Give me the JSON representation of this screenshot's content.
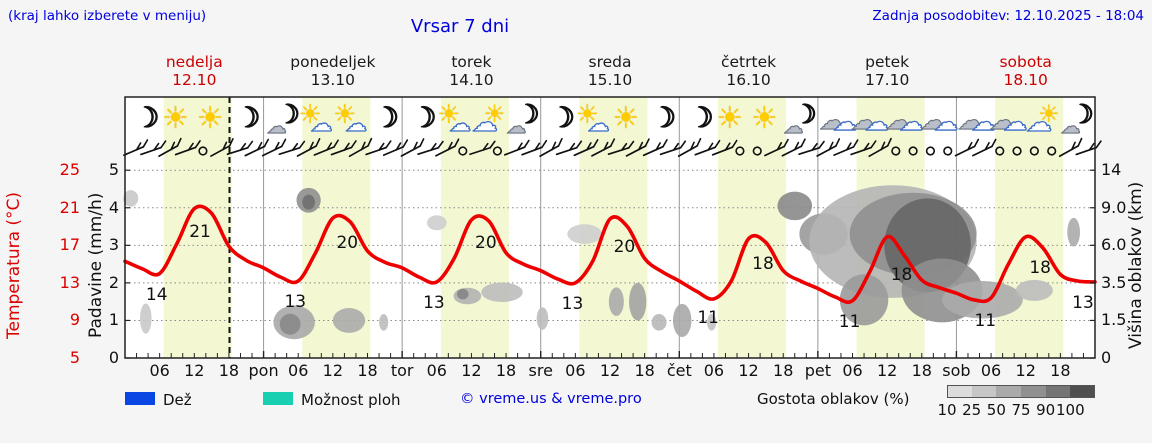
{
  "header": {
    "hint": "(kraj lahko izberete v meniju)",
    "title": "Vrsar 7 dni",
    "updated": "Zadnja posodobitev: 12.10.2025 - 18:04"
  },
  "days": [
    {
      "name": "nedelja",
      "date": "12.10",
      "weekend": true
    },
    {
      "name": "ponedeljek",
      "date": "13.10",
      "weekend": false
    },
    {
      "name": "torek",
      "date": "14.10",
      "weekend": false
    },
    {
      "name": "sreda",
      "date": "15.10",
      "weekend": false
    },
    {
      "name": "četrtek",
      "date": "16.10",
      "weekend": false
    },
    {
      "name": "petek",
      "date": "17.10",
      "weekend": false
    },
    {
      "name": "sobota",
      "date": "18.10",
      "weekend": true
    }
  ],
  "axes": {
    "temp_label": "Temperatura (°C)",
    "temp_ticks": [
      "25",
      "21",
      "17",
      "13",
      "9",
      "5"
    ],
    "precip_label": "Padavine (mm/h)",
    "precip_ticks": [
      "5",
      "4",
      "3",
      "2",
      "1",
      "0"
    ],
    "cloud_label": "Višina oblakov (km)",
    "cloud_ticks": [
      "14",
      "9.0",
      "6.0",
      "3.5",
      "1.5",
      "0"
    ],
    "x_time_labels": [
      "06",
      "12",
      "18"
    ],
    "x_day_labels": [
      "pon",
      "tor",
      "sre",
      "čet",
      "pet",
      "sob"
    ]
  },
  "legend": {
    "rain": "Dež",
    "showers": "Možnost ploh",
    "copyright": "© vreme.us & vreme.pro",
    "cloud_density": "Gostota oblakov (%)",
    "cloud_scale": [
      "10",
      "25",
      "50",
      "75",
      "90",
      "100"
    ],
    "rain_color": "#0a46e4",
    "showers_color": "#19cfb1",
    "scale_colors": [
      "#dcdcdc",
      "#c6c6c6",
      "#aaaaaa",
      "#909090",
      "#757575",
      "#4f4f4f"
    ]
  },
  "icons": [
    "moon",
    "sun",
    "sun",
    "moon",
    "moon-cloud",
    "sun-cloud",
    "sun-cloud",
    "moon",
    "moon",
    "sun-cloud",
    "cloud-sun",
    "moon-cloud",
    "moon",
    "sun-cloud",
    "sun",
    "moon",
    "moon",
    "sun",
    "sun",
    "moon-cloud",
    "cloud",
    "cloud",
    "cloud",
    "cloud",
    "cloud",
    "cloud",
    "cloud-sun",
    "moon-cloud"
  ],
  "chart_data": {
    "type": "line",
    "title": "Vrsar 7 dni",
    "x_unit": "hours_from_sunday_00",
    "x_range": [
      0,
      168
    ],
    "temp_axis_c": [
      5,
      25
    ],
    "precip_axis_mmh": [
      0,
      5
    ],
    "cloud_height_axis_km": [
      0,
      1.5,
      3.5,
      6.0,
      9.0,
      14
    ],
    "now_hour": 18.1,
    "daylight": {
      "start_h": 6.7,
      "end_h": 18.5
    },
    "temperature": {
      "x_hours": [
        0,
        3,
        6,
        9,
        12,
        15,
        18,
        21,
        24,
        27,
        30,
        33,
        36,
        39,
        42,
        45,
        48,
        51,
        54,
        57,
        60,
        63,
        66,
        69,
        72,
        75,
        78,
        81,
        84,
        87,
        90,
        93,
        96,
        99,
        102,
        105,
        108,
        111,
        114,
        117,
        120,
        123,
        126,
        129,
        132,
        135,
        138,
        141,
        144,
        147,
        150,
        153,
        156,
        159,
        162,
        165,
        168
      ],
      "values": [
        15.3,
        14.5,
        14.0,
        17.2,
        20.9,
        20.4,
        16.9,
        15.4,
        14.6,
        13.6,
        13.2,
        16.2,
        19.9,
        19.5,
        16.4,
        15.2,
        14.6,
        13.6,
        13.1,
        15.6,
        19.7,
        19.6,
        16.2,
        15.0,
        14.3,
        13.4,
        13.0,
        15.3,
        19.8,
        19.0,
        15.6,
        14.2,
        13.2,
        12.1,
        11.3,
        13.2,
        17.7,
        17.3,
        14.3,
        13.2,
        12.4,
        11.5,
        11.1,
        14.2,
        17.9,
        15.9,
        13.3,
        12.5,
        11.9,
        11.2,
        11.4,
        15.0,
        17.9,
        16.7,
        13.9,
        13.2,
        13.1
      ],
      "color": "#ee0000"
    },
    "temp_labels": [
      {
        "t": 5.5,
        "v": "14"
      },
      {
        "t": 13,
        "v": "21"
      },
      {
        "t": 29.5,
        "v": "13"
      },
      {
        "t": 38.5,
        "v": "20"
      },
      {
        "t": 53.5,
        "v": "13"
      },
      {
        "t": 62.5,
        "v": "20"
      },
      {
        "t": 77.5,
        "v": "13"
      },
      {
        "t": 86.5,
        "v": "20"
      },
      {
        "t": 101,
        "v": "11"
      },
      {
        "t": 110.5,
        "v": "18"
      },
      {
        "t": 125.5,
        "v": "11"
      },
      {
        "t": 134.5,
        "v": "18"
      },
      {
        "t": 149,
        "v": "11"
      },
      {
        "t": 158.5,
        "v": "18"
      },
      {
        "t": 166.5,
        "v": "13"
      }
    ],
    "clouds": [
      [
        1.0,
        4.25,
        1.3,
        0.22,
        "#c9c9c9"
      ],
      [
        3.6,
        1.05,
        1.0,
        0.4,
        "#c9c9c9"
      ],
      [
        29.3,
        0.95,
        3.6,
        0.45,
        "#a8a8a8"
      ],
      [
        28.6,
        0.9,
        1.8,
        0.28,
        "#8a8a8a"
      ],
      [
        31.8,
        4.2,
        2.1,
        0.33,
        "#8f8f8f"
      ],
      [
        31.8,
        4.15,
        1.1,
        0.2,
        "#6f6f6f"
      ],
      [
        38.8,
        1.0,
        2.8,
        0.33,
        "#ababab"
      ],
      [
        44.8,
        0.95,
        0.8,
        0.22,
        "#bdbdbd"
      ],
      [
        54.0,
        3.6,
        1.7,
        0.2,
        "#cecece"
      ],
      [
        59.3,
        1.65,
        2.4,
        0.22,
        "#b2b2b2"
      ],
      [
        58.5,
        1.7,
        1.0,
        0.14,
        "#858585"
      ],
      [
        65.3,
        1.75,
        3.6,
        0.26,
        "#bdbdbd"
      ],
      [
        72.3,
        1.05,
        1.0,
        0.3,
        "#bdbdbd"
      ],
      [
        79.6,
        3.3,
        3.0,
        0.26,
        "#cecece"
      ],
      [
        85.1,
        1.5,
        1.3,
        0.38,
        "#ababab"
      ],
      [
        88.8,
        1.5,
        1.5,
        0.5,
        "#a3a3a3"
      ],
      [
        92.5,
        0.95,
        1.3,
        0.22,
        "#b8b8b8"
      ],
      [
        96.5,
        1.0,
        1.6,
        0.44,
        "#a8a8a8"
      ],
      [
        101.6,
        0.95,
        0.8,
        0.22,
        "#c2c2c2"
      ],
      [
        116.0,
        4.05,
        3.0,
        0.38,
        "#8a8a8a"
      ],
      [
        121.0,
        3.3,
        4.2,
        0.55,
        "#9a9a9a"
      ],
      [
        133.0,
        3.1,
        14.5,
        1.5,
        "#b5b5b5"
      ],
      [
        128.0,
        1.55,
        4.2,
        0.68,
        "#9a9a9a"
      ],
      [
        136.5,
        3.3,
        11.0,
        1.1,
        "#8f8f8f"
      ],
      [
        139.0,
        3.0,
        7.5,
        1.25,
        "#666666"
      ],
      [
        141.5,
        1.8,
        7.0,
        0.85,
        "#8f8f8f"
      ],
      [
        148.5,
        1.55,
        7.0,
        0.5,
        "#ababab"
      ],
      [
        157.5,
        1.8,
        3.2,
        0.28,
        "#bdbdbd"
      ],
      [
        164.3,
        3.35,
        1.1,
        0.38,
        "#ababab"
      ]
    ],
    "winds": [
      [
        1.5,
        "b"
      ],
      [
        4.5,
        "b"
      ],
      [
        7.5,
        "b"
      ],
      [
        10.5,
        "b"
      ],
      [
        13.5,
        "c"
      ],
      [
        16.5,
        "b"
      ],
      [
        19.5,
        "b"
      ],
      [
        22.5,
        "b"
      ],
      [
        25.5,
        "b"
      ],
      [
        28.5,
        "b"
      ],
      [
        31.5,
        "b"
      ],
      [
        34.5,
        "b"
      ],
      [
        37.5,
        "b"
      ],
      [
        40.5,
        "b"
      ],
      [
        43.5,
        "b"
      ],
      [
        46.5,
        "b"
      ],
      [
        49.5,
        "b"
      ],
      [
        52.5,
        "b"
      ],
      [
        55.5,
        "b"
      ],
      [
        58.5,
        "c"
      ],
      [
        61.5,
        "b"
      ],
      [
        64.5,
        "c"
      ],
      [
        67.5,
        "b"
      ],
      [
        70.5,
        "b"
      ],
      [
        73.5,
        "b"
      ],
      [
        76.5,
        "b"
      ],
      [
        79.5,
        "b"
      ],
      [
        82.5,
        "b"
      ],
      [
        85.5,
        "b"
      ],
      [
        88.5,
        "b"
      ],
      [
        91.5,
        "b"
      ],
      [
        94.5,
        "b"
      ],
      [
        97.5,
        "b"
      ],
      [
        100.5,
        "b"
      ],
      [
        103.5,
        "b"
      ],
      [
        106.5,
        "c"
      ],
      [
        109.5,
        "c"
      ],
      [
        112.5,
        "b"
      ],
      [
        115.5,
        "b"
      ],
      [
        118.5,
        "b"
      ],
      [
        121.5,
        "b"
      ],
      [
        124.5,
        "b"
      ],
      [
        127.5,
        "b"
      ],
      [
        130.5,
        "b"
      ],
      [
        133.5,
        "c"
      ],
      [
        136.5,
        "c"
      ],
      [
        139.5,
        "c"
      ],
      [
        142.5,
        "c"
      ],
      [
        145.5,
        "b"
      ],
      [
        148.5,
        "b"
      ],
      [
        151.5,
        "c"
      ],
      [
        154.5,
        "c"
      ],
      [
        157.5,
        "c"
      ],
      [
        160.5,
        "c"
      ],
      [
        163.5,
        "b"
      ],
      [
        166.5,
        "b"
      ]
    ],
    "colors": {
      "daylight_band": "#f3f8d2",
      "grid": "#888888",
      "day_separator": "#999999",
      "now_line": "#111111"
    }
  }
}
